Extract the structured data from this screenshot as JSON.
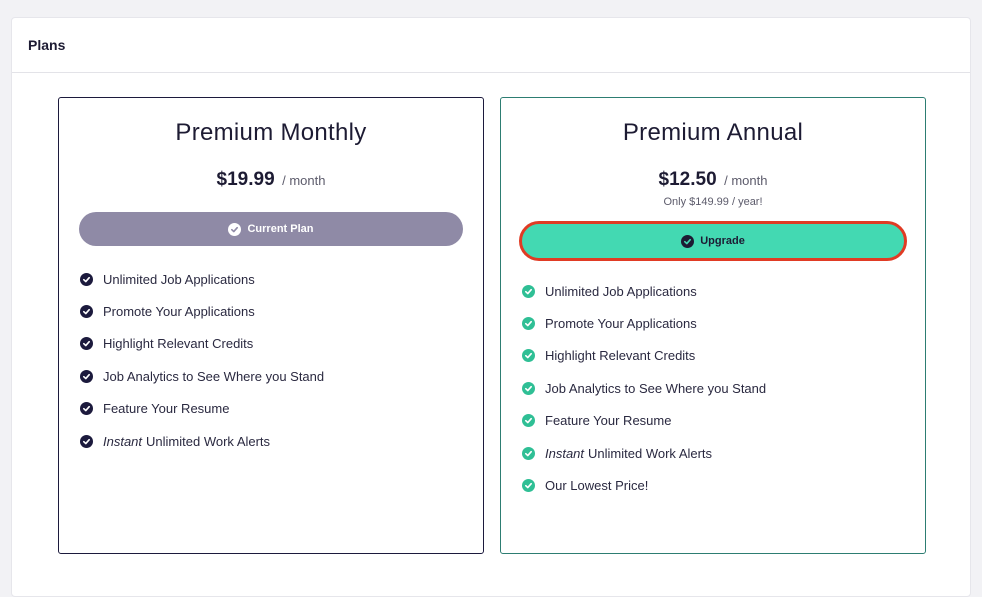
{
  "panel": {
    "title": "Plans"
  },
  "plans": [
    {
      "name": "Premium Monthly",
      "price": "$19.99",
      "period": "/ month",
      "button_label": "Current Plan",
      "features": [
        {
          "emphasis": "",
          "text": "Unlimited Job Applications"
        },
        {
          "emphasis": "",
          "text": "Promote Your Applications"
        },
        {
          "emphasis": "",
          "text": "Highlight Relevant Credits"
        },
        {
          "emphasis": "",
          "text": "Job Analytics to See Where you Stand"
        },
        {
          "emphasis": "",
          "text": "Feature Your Resume"
        },
        {
          "emphasis": "Instant",
          "text": "Unlimited Work Alerts"
        }
      ]
    },
    {
      "name": "Premium Annual",
      "price": "$12.50",
      "period": "/ month",
      "subprice": "Only $149.99 / year!",
      "button_label": "Upgrade",
      "features": [
        {
          "emphasis": "",
          "text": "Unlimited Job Applications"
        },
        {
          "emphasis": "",
          "text": "Promote Your Applications"
        },
        {
          "emphasis": "",
          "text": "Highlight Relevant Credits"
        },
        {
          "emphasis": "",
          "text": "Job Analytics to See Where you Stand"
        },
        {
          "emphasis": "",
          "text": "Feature Your Resume"
        },
        {
          "emphasis": "Instant",
          "text": "Unlimited Work Alerts"
        },
        {
          "emphasis": "",
          "text": "Our Lowest Price!"
        }
      ]
    }
  ],
  "colors": {
    "monthly_accent": "#1c1a3d",
    "annual_accent": "#2fbf95",
    "current_plan_button": "#8f8aa6",
    "upgrade_button": "#43d9b2",
    "upgrade_highlight": "#e03b24"
  },
  "icons": {
    "feature_check": "check-circle-icon",
    "button_check": "check-circle-icon"
  }
}
